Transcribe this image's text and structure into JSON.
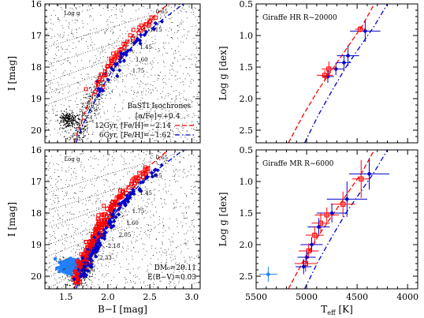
{
  "chart_data": [
    {
      "id": "p1",
      "type": "scatter",
      "xlabel": "",
      "ylabel": "I [mag]",
      "xlim": [
        1.25,
        3.1
      ],
      "ylim": [
        20.4,
        16
      ],
      "xticks": [],
      "yticks": [
        {
          "v": 16,
          "t": "16"
        },
        {
          "v": 17,
          "t": "17"
        },
        {
          "v": 18,
          "t": "18"
        },
        {
          "v": 19,
          "t": "19"
        },
        {
          "v": 20,
          "t": "20"
        }
      ],
      "legend": {
        "title": "BaSTI Isochrones",
        "alpha": "[α/Fe]=+0.4",
        "red_label": "12Gyr, [Fe/H]=−2.14",
        "blue_label": "6Gyr, [Fe/H]=−1.62"
      },
      "logg_title": "Log g",
      "logg_labels": [
        {
          "t": "0.65",
          "x": 2.57,
          "y": 16.3
        },
        {
          "t": "1.15",
          "x": 2.5,
          "y": 16.88
        },
        {
          "t": "1.45",
          "x": 2.38,
          "y": 17.43
        },
        {
          "t": "1.60",
          "x": 2.33,
          "y": 17.82
        },
        {
          "t": "1.75",
          "x": 2.29,
          "y": 18.18
        }
      ],
      "red_iso": [
        [
          1.6,
          20.4
        ],
        [
          1.66,
          19.9
        ],
        [
          1.73,
          19.4
        ],
        [
          1.83,
          18.8
        ],
        [
          1.95,
          18.2
        ],
        [
          2.1,
          17.6
        ],
        [
          2.3,
          17.0
        ],
        [
          2.5,
          16.5
        ],
        [
          2.72,
          16.0
        ]
      ],
      "blue_iso": [
        [
          1.62,
          20.4
        ],
        [
          1.69,
          19.9
        ],
        [
          1.78,
          19.4
        ],
        [
          1.9,
          18.8
        ],
        [
          2.03,
          18.2
        ],
        [
          2.2,
          17.6
        ],
        [
          2.42,
          17.0
        ],
        [
          2.65,
          16.5
        ],
        [
          2.9,
          16.0
        ]
      ]
    },
    {
      "id": "p2",
      "type": "scatter",
      "xlabel": "B−I [mag]",
      "ylabel": "I [mag]",
      "xlim": [
        1.25,
        3.1
      ],
      "ylim": [
        20.4,
        16
      ],
      "xticks": [
        {
          "v": 1.5,
          "t": "1.5"
        },
        {
          "v": 2.0,
          "t": "2.0"
        },
        {
          "v": 2.5,
          "t": "2.5"
        },
        {
          "v": 3.0,
          "t": "3.0"
        }
      ],
      "yticks": [
        {
          "v": 16,
          "t": "16"
        },
        {
          "v": 17,
          "t": "17"
        },
        {
          "v": 18,
          "t": "18"
        },
        {
          "v": 19,
          "t": "19"
        },
        {
          "v": 20,
          "t": "20"
        }
      ],
      "dm_label": "DM₀=20.11",
      "ebv_label": "E(B−V)=0.03",
      "logg_title": "Log g",
      "logg_labels": [
        {
          "t": "0.65",
          "x": 2.57,
          "y": 16.3
        },
        {
          "t": "1.15",
          "x": 2.5,
          "y": 16.88
        },
        {
          "t": "1.45",
          "x": 2.38,
          "y": 17.43
        },
        {
          "t": "1.75",
          "x": 2.29,
          "y": 18.0
        },
        {
          "t": "1.60",
          "x": 2.22,
          "y": 18.38
        },
        {
          "t": "2.05",
          "x": 2.13,
          "y": 18.75
        },
        {
          "t": "2.18",
          "x": 2.0,
          "y": 19.1
        },
        {
          "t": "2.33",
          "x": 1.9,
          "y": 19.48
        },
        {
          "t": "2.56",
          "x": 1.7,
          "y": 19.85
        }
      ],
      "red_iso": [
        [
          1.6,
          20.4
        ],
        [
          1.66,
          19.9
        ],
        [
          1.73,
          19.4
        ],
        [
          1.83,
          18.8
        ],
        [
          1.95,
          18.2
        ],
        [
          2.1,
          17.6
        ],
        [
          2.3,
          17.0
        ],
        [
          2.5,
          16.5
        ],
        [
          2.72,
          16.0
        ]
      ],
      "blue_iso": [
        [
          1.62,
          20.4
        ],
        [
          1.69,
          19.9
        ],
        [
          1.78,
          19.4
        ],
        [
          1.9,
          18.8
        ],
        [
          2.03,
          18.2
        ],
        [
          2.2,
          17.6
        ],
        [
          2.42,
          17.0
        ],
        [
          2.65,
          16.5
        ],
        [
          2.9,
          16.0
        ]
      ]
    },
    {
      "id": "p3",
      "type": "scatter",
      "title": "Giraffe HR  R~20000",
      "xlabel": "",
      "ylabel": "Log g [dex]",
      "xlim": [
        5500,
        3900
      ],
      "ylim": [
        2.7,
        0.5
      ],
      "xticks": [],
      "yticks": [
        {
          "v": 0.5,
          "t": "0.5"
        },
        {
          "v": 1.0,
          "t": "1.0"
        },
        {
          "v": 1.5,
          "t": "1.5"
        },
        {
          "v": 2.0,
          "t": "2.0"
        },
        {
          "v": 2.5,
          "t": "2.5"
        }
      ],
      "red_iso": [
        [
          5180,
          2.7
        ],
        [
          5030,
          2.25
        ],
        [
          4880,
          1.85
        ],
        [
          4730,
          1.5
        ],
        [
          4580,
          1.15
        ],
        [
          4450,
          0.85
        ],
        [
          4330,
          0.5
        ]
      ],
      "blue_iso": [
        [
          5020,
          2.7
        ],
        [
          4880,
          2.25
        ],
        [
          4740,
          1.85
        ],
        [
          4610,
          1.5
        ],
        [
          4460,
          1.15
        ],
        [
          4330,
          0.85
        ],
        [
          4200,
          0.5
        ]
      ],
      "points": [
        {
          "x": 4420,
          "y": 0.93,
          "ex": 150,
          "ey": 0.17,
          "c": "blue"
        },
        {
          "x": 4470,
          "y": 0.9,
          "ex": 50,
          "ey": 0.05,
          "c": "red"
        },
        {
          "x": 4590,
          "y": 1.32,
          "ex": 110,
          "ey": 0.16,
          "c": "blue"
        },
        {
          "x": 4630,
          "y": 1.43,
          "ex": 70,
          "ey": 0.12,
          "c": "blue"
        },
        {
          "x": 4710,
          "y": 1.53,
          "ex": 80,
          "ey": 0.1,
          "c": "blue"
        },
        {
          "x": 4780,
          "y": 1.53,
          "ex": 70,
          "ey": 0.12,
          "c": "red"
        },
        {
          "x": 4790,
          "y": 1.65,
          "ex": 60,
          "ey": 0.1,
          "c": "blue"
        },
        {
          "x": 4820,
          "y": 1.63,
          "ex": 80,
          "ey": 0.08,
          "c": "red"
        }
      ]
    },
    {
      "id": "p4",
      "type": "scatter",
      "title": "Giraffe MR  R~6000",
      "xlabel": "T_eff [K]",
      "ylabel": "Log g [dex]",
      "xlim": [
        5500,
        3900
      ],
      "ylim": [
        2.7,
        0.5
      ],
      "xticks": [
        {
          "v": 5500,
          "t": "5500"
        },
        {
          "v": 5000,
          "t": "5000"
        },
        {
          "v": 4500,
          "t": "4500"
        },
        {
          "v": 4000,
          "t": "4000"
        }
      ],
      "yticks": [
        {
          "v": 0.5,
          "t": "0.5"
        },
        {
          "v": 1.0,
          "t": "1.0"
        },
        {
          "v": 1.5,
          "t": "1.5"
        },
        {
          "v": 2.0,
          "t": "2.0"
        },
        {
          "v": 2.5,
          "t": "2.5"
        }
      ],
      "red_iso": [
        [
          5180,
          2.7
        ],
        [
          5030,
          2.25
        ],
        [
          4880,
          1.85
        ],
        [
          4730,
          1.5
        ],
        [
          4580,
          1.15
        ],
        [
          4450,
          0.85
        ],
        [
          4330,
          0.5
        ]
      ],
      "blue_iso": [
        [
          5020,
          2.7
        ],
        [
          4880,
          2.25
        ],
        [
          4740,
          1.85
        ],
        [
          4610,
          1.5
        ],
        [
          4460,
          1.15
        ],
        [
          4330,
          0.85
        ],
        [
          4200,
          0.5
        ]
      ],
      "points": [
        {
          "x": 5380,
          "y": 2.47,
          "ex": 90,
          "ey": 0.12,
          "c": "lightblue"
        },
        {
          "x": 4380,
          "y": 0.88,
          "ex": 200,
          "ey": 0.25,
          "c": "blue"
        },
        {
          "x": 4460,
          "y": 0.96,
          "ex": 90,
          "ey": 0.3,
          "c": "red"
        },
        {
          "x": 4600,
          "y": 1.28,
          "ex": 200,
          "ey": 0.28,
          "c": "blue"
        },
        {
          "x": 4640,
          "y": 1.36,
          "ex": 120,
          "ey": 0.2,
          "c": "red"
        },
        {
          "x": 4750,
          "y": 1.5,
          "ex": 150,
          "ey": 0.15,
          "c": "blue"
        },
        {
          "x": 4800,
          "y": 1.53,
          "ex": 120,
          "ey": 0.12,
          "c": "red"
        },
        {
          "x": 4860,
          "y": 1.66,
          "ex": 90,
          "ey": 0.16,
          "c": "red"
        },
        {
          "x": 4880,
          "y": 1.72,
          "ex": 110,
          "ey": 0.14,
          "c": "blue"
        },
        {
          "x": 4920,
          "y": 1.85,
          "ex": 90,
          "ey": 0.14,
          "c": "red"
        },
        {
          "x": 4950,
          "y": 2.0,
          "ex": 110,
          "ey": 0.12,
          "c": "blue"
        },
        {
          "x": 4980,
          "y": 2.1,
          "ex": 100,
          "ey": 0.12,
          "c": "red"
        },
        {
          "x": 5000,
          "y": 2.2,
          "ex": 90,
          "ey": 0.1,
          "c": "blue"
        },
        {
          "x": 5010,
          "y": 2.3,
          "ex": 110,
          "ey": 0.13,
          "c": "red"
        },
        {
          "x": 5030,
          "y": 2.35,
          "ex": 80,
          "ey": 0.12,
          "c": "blue"
        }
      ]
    }
  ],
  "colors": {
    "red": "#ff0000",
    "blue": "#0000cc",
    "lightblue": "#2080ff",
    "grey": "#555555"
  }
}
